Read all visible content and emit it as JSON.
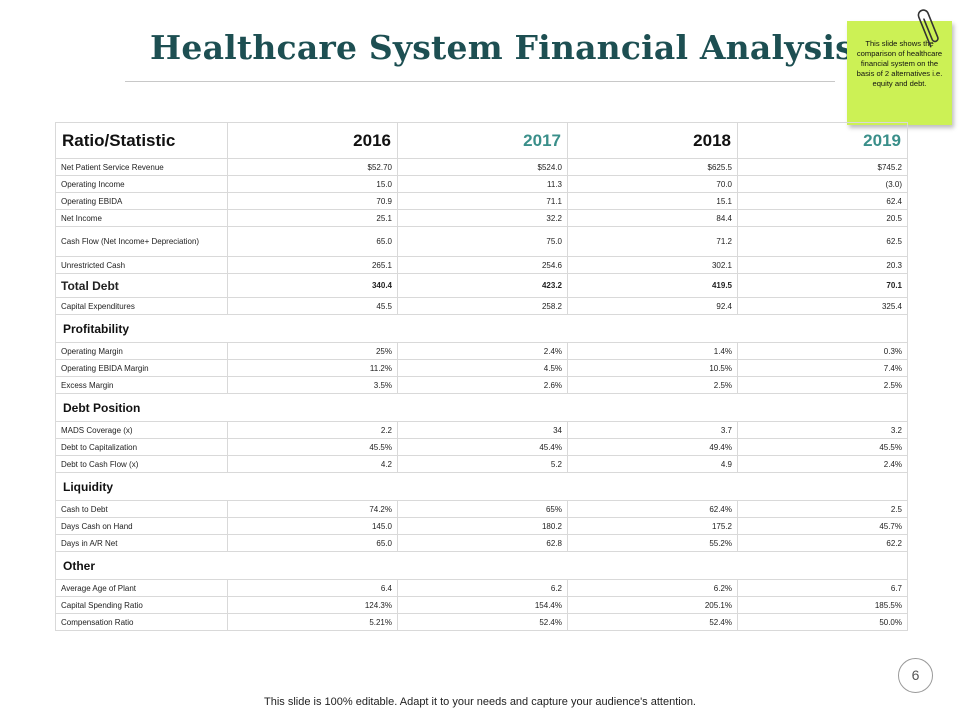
{
  "title": "Healthcare System Financial Analysis",
  "note": "This slide shows the comparison of healthcare financial system on the basis of 2 alternatives i.e. equity and debt.",
  "table": {
    "header": "Ratio/Statistic",
    "years": [
      "2016",
      "2017",
      "2018",
      "2019"
    ],
    "year_colors": [
      "#111111",
      "#3a8f8a",
      "#111111",
      "#3a8f8a"
    ]
  },
  "rows": {
    "r1": {
      "label": "Net Patient Service Revenue",
      "v": [
        "$52.70",
        "$524.0",
        "$625.5",
        "$745.2"
      ]
    },
    "r2": {
      "label": "Operating Income",
      "v": [
        "15.0",
        "11.3",
        "70.0",
        "(3.0)"
      ]
    },
    "r3": {
      "label": "Operating EBIDA",
      "v": [
        "70.9",
        "71.1",
        "15.1",
        "62.4"
      ]
    },
    "r4": {
      "label": "Net Income",
      "v": [
        "25.1",
        "32.2",
        "84.4",
        "20.5"
      ]
    },
    "r5": {
      "label": "Cash Flow (Net Income+ Depreciation)",
      "v": [
        "65.0",
        "75.0",
        "71.2",
        "62.5"
      ]
    },
    "r6": {
      "label": "Unrestricted Cash",
      "v": [
        "265.1",
        "254.6",
        "302.1",
        "20.3"
      ]
    },
    "r7": {
      "label": "Total Debt",
      "v": [
        "340.4",
        "423.2",
        "419.5",
        "70.1"
      ]
    },
    "r8": {
      "label": "Capital Expenditures",
      "v": [
        "45.5",
        "258.2",
        "92.4",
        "325.4"
      ]
    },
    "s1": "Profitability",
    "r9": {
      "label": "Operating Margin",
      "v": [
        "25%",
        "2.4%",
        "1.4%",
        "0.3%"
      ]
    },
    "r10": {
      "label": "Operating EBIDA Margin",
      "v": [
        "11.2%",
        "4.5%",
        "10.5%",
        "7.4%"
      ]
    },
    "r11": {
      "label": "Excess Margin",
      "v": [
        "3.5%",
        "2.6%",
        "2.5%",
        "2.5%"
      ]
    },
    "s2": "Debt Position",
    "r12": {
      "label": "MADS Coverage (x)",
      "v": [
        "2.2",
        "34",
        "3.7",
        "3.2"
      ]
    },
    "r13": {
      "label": "Debt to Capitalization",
      "v": [
        "45.5%",
        "45.4%",
        "49.4%",
        "45.5%"
      ]
    },
    "r14": {
      "label": "Debt to Cash Flow (x)",
      "v": [
        "4.2",
        "5.2",
        "4.9",
        "2.4%"
      ]
    },
    "s3": "Liquidity",
    "r15": {
      "label": "Cash to Debt",
      "v": [
        "74.2%",
        "65%",
        "62.4%",
        "2.5"
      ]
    },
    "r16": {
      "label": "Days Cash on Hand",
      "v": [
        "145.0",
        "180.2",
        "175.2",
        "45.7%"
      ]
    },
    "r17": {
      "label": "Days in A/R Net",
      "v": [
        "65.0",
        "62.8",
        "55.2%",
        "62.2"
      ]
    },
    "s4": "Other",
    "r18": {
      "label": "Average Age of Plant",
      "v": [
        "6.4",
        "6.2",
        "6.2%",
        "6.7"
      ]
    },
    "r19": {
      "label": "Capital Spending Ratio",
      "v": [
        "124.3%",
        "154.4%",
        "205.1%",
        "185.5%"
      ]
    },
    "r20": {
      "label": "Compensation Ratio",
      "v": [
        "5.21%",
        "52.4%",
        "52.4%",
        "50.0%"
      ]
    }
  },
  "page_number": "6",
  "footer": "This slide is 100% editable. Adapt it to your needs and capture your audience's attention."
}
